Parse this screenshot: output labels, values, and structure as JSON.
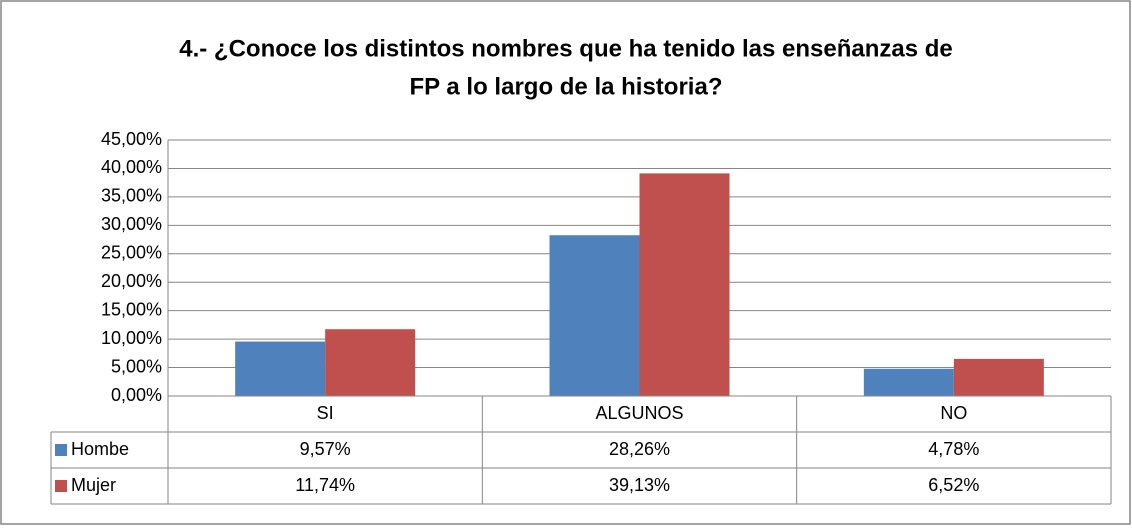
{
  "chart_data": {
    "type": "bar",
    "title": [
      "4.- ¿Conoce  los distintos nombres que ha tenido las enseñanzas de",
      "FP   a lo largo de la historia?"
    ],
    "categories": [
      "SI",
      "ALGUNOS",
      "NO"
    ],
    "series": [
      {
        "name": "Hombe",
        "color": "#4f81bd",
        "values": [
          9.57,
          28.26,
          4.78
        ],
        "value_labels": [
          "9,57%",
          "28,26%",
          "4,78%"
        ]
      },
      {
        "name": "Mujer",
        "color": "#c0504d",
        "values": [
          11.74,
          39.13,
          6.52
        ],
        "value_labels": [
          "11,74%",
          "39,13%",
          "6,52%"
        ]
      }
    ],
    "ylim": [
      0,
      45
    ],
    "yticks": [
      {
        "value": 0,
        "label": "0,00%"
      },
      {
        "value": 5,
        "label": "5,00%"
      },
      {
        "value": 10,
        "label": "10,00%"
      },
      {
        "value": 15,
        "label": "15,00%"
      },
      {
        "value": 20,
        "label": "20,00%"
      },
      {
        "value": 25,
        "label": "25,00%"
      },
      {
        "value": 30,
        "label": "30,00%"
      },
      {
        "value": 35,
        "label": "35,00%"
      },
      {
        "value": 40,
        "label": "40,00%"
      },
      {
        "value": 45,
        "label": "45,00%"
      }
    ],
    "grid": true,
    "legend": "table"
  }
}
